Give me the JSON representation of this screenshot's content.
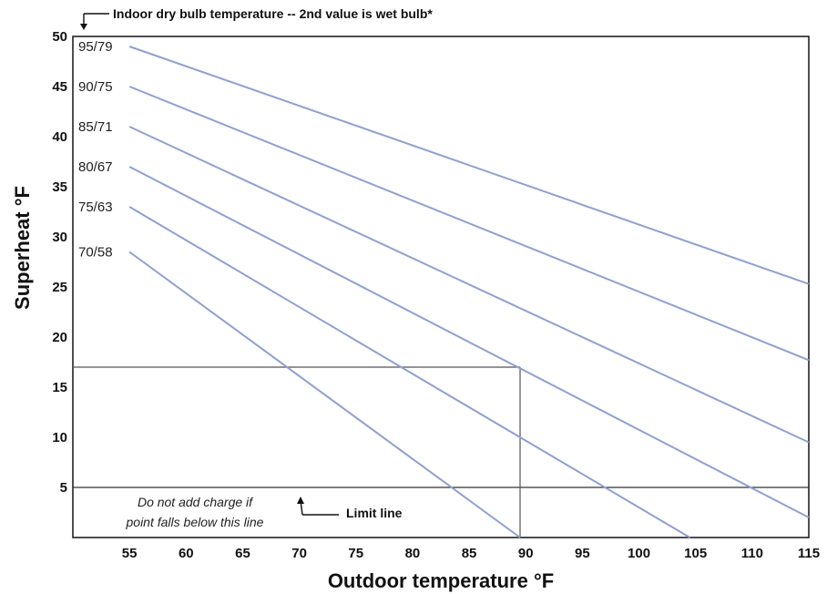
{
  "chart_data": {
    "type": "line",
    "xlabel": "Outdoor temperature °F",
    "ylabel": "Superheat °F",
    "xlim": [
      50,
      115
    ],
    "ylim": [
      0,
      50
    ],
    "x_ticks": [
      55,
      60,
      65,
      70,
      75,
      80,
      85,
      90,
      95,
      100,
      105,
      110,
      115
    ],
    "y_ticks": [
      5,
      10,
      15,
      20,
      25,
      30,
      35,
      40,
      45,
      50
    ],
    "line_color": "#8f9fd4",
    "series": [
      {
        "name": "95/79",
        "points": [
          [
            55,
            49
          ],
          [
            115,
            25.3
          ]
        ]
      },
      {
        "name": "90/75",
        "points": [
          [
            55,
            45
          ],
          [
            115,
            17.7
          ]
        ]
      },
      {
        "name": "85/71",
        "points": [
          [
            55,
            41
          ],
          [
            115,
            9.5
          ]
        ]
      },
      {
        "name": "80/67",
        "points": [
          [
            55,
            37
          ],
          [
            115,
            2
          ]
        ]
      },
      {
        "name": "75/63",
        "points": [
          [
            55,
            33
          ],
          [
            104.5,
            0
          ]
        ]
      },
      {
        "name": "70/58",
        "points": [
          [
            55,
            28.5
          ],
          [
            89.5,
            0
          ]
        ]
      }
    ],
    "reference_lines": {
      "limit_line_y": 5,
      "example_x": 89.5,
      "example_y": 17
    },
    "annotations": {
      "legend_note": "Indoor dry bulb temperature -- 2nd value is wet bulb*",
      "limit_label": "Limit line",
      "warning_line1": "Do not add charge if",
      "warning_line2": "point falls below this line"
    },
    "grid": false
  }
}
